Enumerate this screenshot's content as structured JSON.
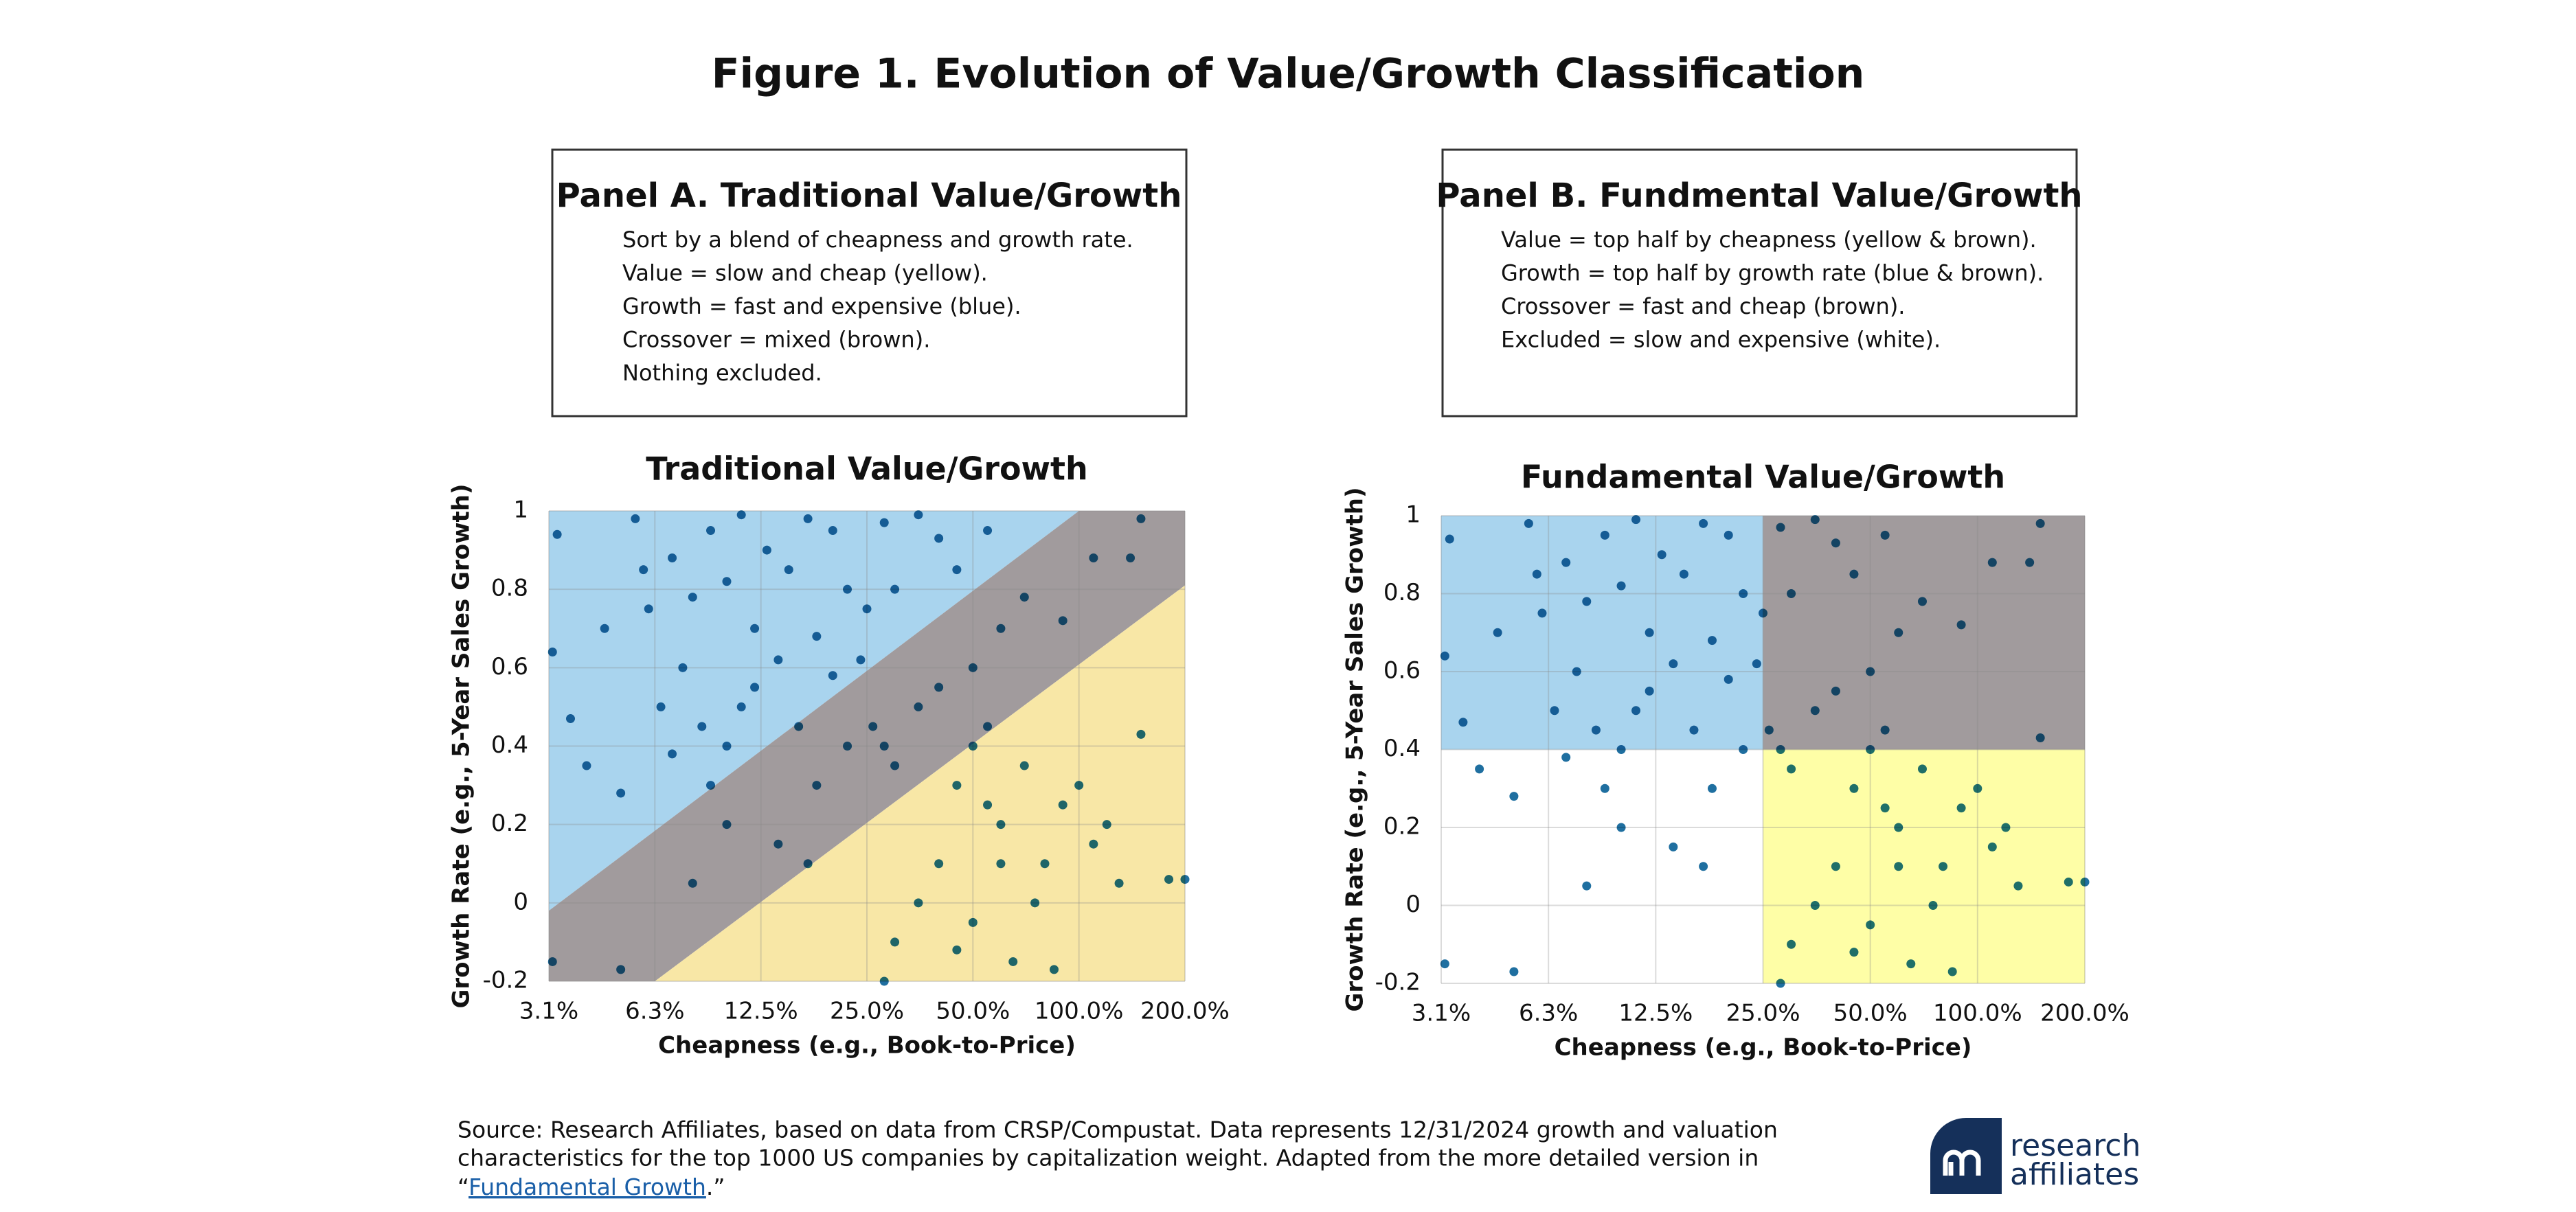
{
  "header": {
    "title": "Figure 1. Evolution of Value/Growth Classification"
  },
  "panels": [
    {
      "heading": "Panel A. Traditional Value/Growth",
      "lines": [
        "Sort by a blend of cheapness and growth rate.",
        "Value = slow and cheap (yellow).",
        "Growth = fast and expensive (blue).",
        "Crossover = mixed (brown).",
        "Nothing excluded."
      ]
    },
    {
      "heading": "Panel B. Fundmental Value/Growth",
      "lines": [
        "Value = top half by cheapness (yellow & brown).",
        "Growth = top half by growth rate (blue & brown).",
        "Crossover = fast and cheap (brown).",
        "Excluded = slow and expensive (white)."
      ]
    }
  ],
  "chart_data": [
    {
      "type": "scatter",
      "title": "Traditional Value/Growth",
      "x_label": "Cheapness (e.g., Book-to-Price)",
      "y_label": "Growth Rate (e.g., 5-Year Sales Growth)",
      "x_scale": "log",
      "grid": true,
      "color": "#1f6fa0",
      "xlim": [
        3.125,
        200
      ],
      "ylim": [
        -0.2,
        1
      ],
      "xticks": [
        {
          "value": 3.125,
          "label": "3.1%"
        },
        {
          "value": 6.25,
          "label": "6.3%"
        },
        {
          "value": 12.5,
          "label": "12.5%"
        },
        {
          "value": 25,
          "label": "25.0%"
        },
        {
          "value": 50,
          "label": "50.0%"
        },
        {
          "value": 100,
          "label": "100.0%"
        },
        {
          "value": 200,
          "label": "200.0%"
        }
      ],
      "yticks": [
        -0.2,
        0,
        0.2,
        0.4,
        0.6,
        0.8,
        1
      ],
      "regions": [
        {
          "color": "#a9d4ee",
          "x": [
            3.125,
            100,
            3.125
          ],
          "y": [
            -0.02,
            1,
            1
          ]
        },
        {
          "color": "#a19b9d",
          "x": [
            3.125,
            100,
            200,
            200,
            6.25,
            3.125
          ],
          "y": [
            -0.02,
            1,
            1,
            0.81,
            -0.2,
            -0.2
          ]
        },
        {
          "color": "#f8e7a6",
          "x": [
            6.25,
            200,
            200
          ],
          "y": [
            -0.2,
            0.81,
            -0.2
          ]
        }
      ],
      "x": [
        3.3,
        3.2,
        3.6,
        4.5,
        5.5,
        5.8,
        6,
        7,
        7.5,
        8,
        9,
        10,
        11,
        12,
        13,
        15,
        17,
        20,
        22,
        28,
        35,
        40,
        55,
        6.5,
        8.5,
        10,
        12,
        14,
        18,
        20,
        25,
        30,
        9,
        7,
        5,
        4,
        11,
        16,
        24,
        45,
        3.2,
        5,
        8,
        10,
        14,
        18,
        22,
        26,
        30,
        35,
        40,
        50,
        60,
        70,
        90,
        110,
        150,
        140,
        17,
        28,
        50,
        45,
        55,
        60,
        70,
        80,
        90,
        100,
        120,
        130,
        150,
        180,
        40,
        35,
        30,
        50,
        65,
        75,
        85,
        45,
        110,
        200,
        55,
        28,
        60
      ],
      "y": [
        0.94,
        0.64,
        0.47,
        0.7,
        0.98,
        0.85,
        0.75,
        0.88,
        0.6,
        0.78,
        0.95,
        0.82,
        0.99,
        0.7,
        0.9,
        0.85,
        0.98,
        0.95,
        0.8,
        0.97,
        0.99,
        0.93,
        0.95,
        0.5,
        0.45,
        0.4,
        0.55,
        0.62,
        0.68,
        0.58,
        0.75,
        0.8,
        0.3,
        0.38,
        0.28,
        0.35,
        0.5,
        0.45,
        0.62,
        0.85,
        -0.15,
        -0.17,
        0.05,
        0.2,
        0.15,
        0.3,
        0.4,
        0.45,
        0.35,
        0.5,
        0.55,
        0.6,
        0.7,
        0.78,
        0.72,
        0.88,
        0.98,
        0.88,
        0.1,
        0.4,
        0.4,
        0.3,
        0.25,
        0.2,
        0.35,
        0.1,
        0.25,
        0.3,
        0.2,
        0.05,
        0.43,
        0.06,
        0.1,
        0,
        -0.1,
        -0.05,
        -0.15,
        0,
        -0.17,
        -0.12,
        0.15,
        0.06,
        0.45,
        -0.2,
        0.1
      ]
    },
    {
      "type": "scatter",
      "title": "Fundamental Value/Growth",
      "x_label": "Cheapness (e.g., Book-to-Price)",
      "y_label": "Growth Rate (e.g., 5-Year Sales Growth)",
      "x_scale": "log",
      "grid": true,
      "color": "#1f6fa0",
      "xlim": [
        3.125,
        200
      ],
      "ylim": [
        -0.2,
        1
      ],
      "xticks": [
        {
          "value": 3.125,
          "label": "3.1%"
        },
        {
          "value": 6.25,
          "label": "6.3%"
        },
        {
          "value": 12.5,
          "label": "12.5%"
        },
        {
          "value": 25,
          "label": "25.0%"
        },
        {
          "value": 50,
          "label": "50.0%"
        },
        {
          "value": 100,
          "label": "100.0%"
        },
        {
          "value": 200,
          "label": "200.0%"
        }
      ],
      "yticks": [
        -0.2,
        0,
        0.2,
        0.4,
        0.6,
        0.8,
        1
      ],
      "regions": [
        {
          "color": "#a9d4ee",
          "x": [
            3.125,
            25,
            25,
            3.125
          ],
          "y": [
            0.4,
            0.4,
            1,
            1
          ]
        },
        {
          "color": "#a19b9d",
          "x": [
            25,
            200,
            200,
            25
          ],
          "y": [
            0.4,
            0.4,
            1,
            1
          ]
        },
        {
          "color": "#fefea6",
          "x": [
            25,
            200,
            200,
            25
          ],
          "y": [
            -0.2,
            -0.2,
            0.4,
            0.4
          ]
        }
      ],
      "x": [
        3.3,
        3.2,
        3.6,
        4.5,
        5.5,
        5.8,
        6,
        7,
        7.5,
        8,
        9,
        10,
        11,
        12,
        13,
        15,
        17,
        20,
        22,
        28,
        35,
        40,
        55,
        6.5,
        8.5,
        10,
        12,
        14,
        18,
        20,
        25,
        30,
        9,
        7,
        5,
        4,
        11,
        16,
        24,
        45,
        3.2,
        5,
        8,
        10,
        14,
        18,
        22,
        26,
        30,
        35,
        40,
        50,
        60,
        70,
        90,
        110,
        150,
        140,
        17,
        28,
        50,
        45,
        55,
        60,
        70,
        80,
        90,
        100,
        120,
        130,
        150,
        180,
        40,
        35,
        30,
        50,
        65,
        75,
        85,
        45,
        110,
        200,
        55,
        28,
        60
      ],
      "y": [
        0.94,
        0.64,
        0.47,
        0.7,
        0.98,
        0.85,
        0.75,
        0.88,
        0.6,
        0.78,
        0.95,
        0.82,
        0.99,
        0.7,
        0.9,
        0.85,
        0.98,
        0.95,
        0.8,
        0.97,
        0.99,
        0.93,
        0.95,
        0.5,
        0.45,
        0.4,
        0.55,
        0.62,
        0.68,
        0.58,
        0.75,
        0.8,
        0.3,
        0.38,
        0.28,
        0.35,
        0.5,
        0.45,
        0.62,
        0.85,
        -0.15,
        -0.17,
        0.05,
        0.2,
        0.15,
        0.3,
        0.4,
        0.45,
        0.35,
        0.5,
        0.55,
        0.6,
        0.7,
        0.78,
        0.72,
        0.88,
        0.98,
        0.88,
        0.1,
        0.4,
        0.4,
        0.3,
        0.25,
        0.2,
        0.35,
        0.1,
        0.25,
        0.3,
        0.2,
        0.05,
        0.43,
        0.06,
        0.1,
        0,
        -0.1,
        -0.05,
        -0.15,
        0,
        -0.17,
        -0.12,
        0.15,
        0.06,
        0.45,
        -0.2,
        0.1
      ]
    }
  ],
  "footer": {
    "lines": [
      "Source: Research Affiliates, based on data from CRSP/Compustat. Data represents 12/31/2024 growth and valuation",
      "characteristics for the top 1000 US companies by capitalization weight. Adapted from the more detailed version in"
    ],
    "quote_open": "“",
    "link": "Fundamental Growth",
    "quote_close": ".”"
  },
  "logo": {
    "lines": [
      "research",
      "affiliates"
    ]
  }
}
